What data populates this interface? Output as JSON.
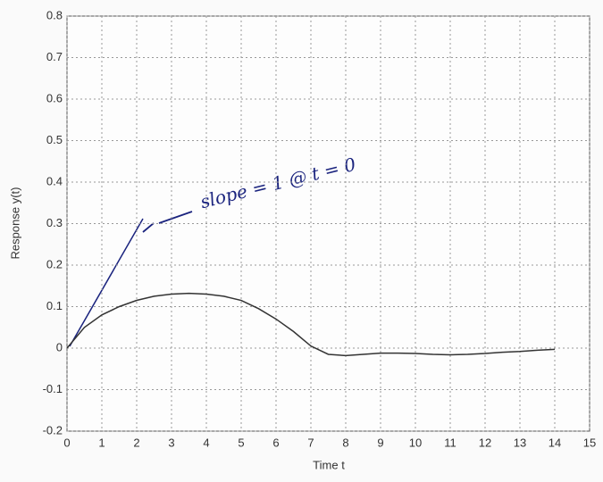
{
  "chart_data": {
    "type": "line",
    "xlabel": "Time t",
    "ylabel": "Response y(t)",
    "annotation": "slope = 1 @ t = 0",
    "x": [
      0,
      0.5,
      1,
      1.5,
      2,
      2.5,
      3,
      3.5,
      4,
      4.5,
      5,
      5.5,
      6,
      6.5,
      7,
      7.5,
      8,
      8.5,
      9,
      9.5,
      10,
      10.5,
      11,
      11.5,
      12,
      12.5,
      13,
      13.5,
      14
    ],
    "series": [
      {
        "color": "#333333",
        "values": [
          0,
          0.05,
          0.08,
          0.1,
          0.115,
          0.125,
          0.13,
          0.132,
          0.13,
          0.125,
          0.115,
          0.095,
          0.07,
          0.04,
          0.005,
          -0.015,
          -0.018,
          -0.015,
          -0.012,
          -0.012,
          -0.013,
          -0.015,
          -0.016,
          -0.015,
          -0.013,
          -0.01,
          -0.008,
          -0.005,
          -0.003
        ]
      }
    ],
    "xlim": [
      0,
      15
    ],
    "ylim": [
      -0.2,
      0.8
    ],
    "xticks": [
      0,
      1,
      2,
      3,
      4,
      5,
      6,
      7,
      8,
      9,
      10,
      11,
      12,
      13,
      14,
      15
    ],
    "yticks": [
      -0.2,
      -0.1,
      0,
      0.1,
      0.2,
      0.3,
      0.4,
      0.5,
      0.6,
      0.7,
      0.8
    ],
    "grid": true
  }
}
